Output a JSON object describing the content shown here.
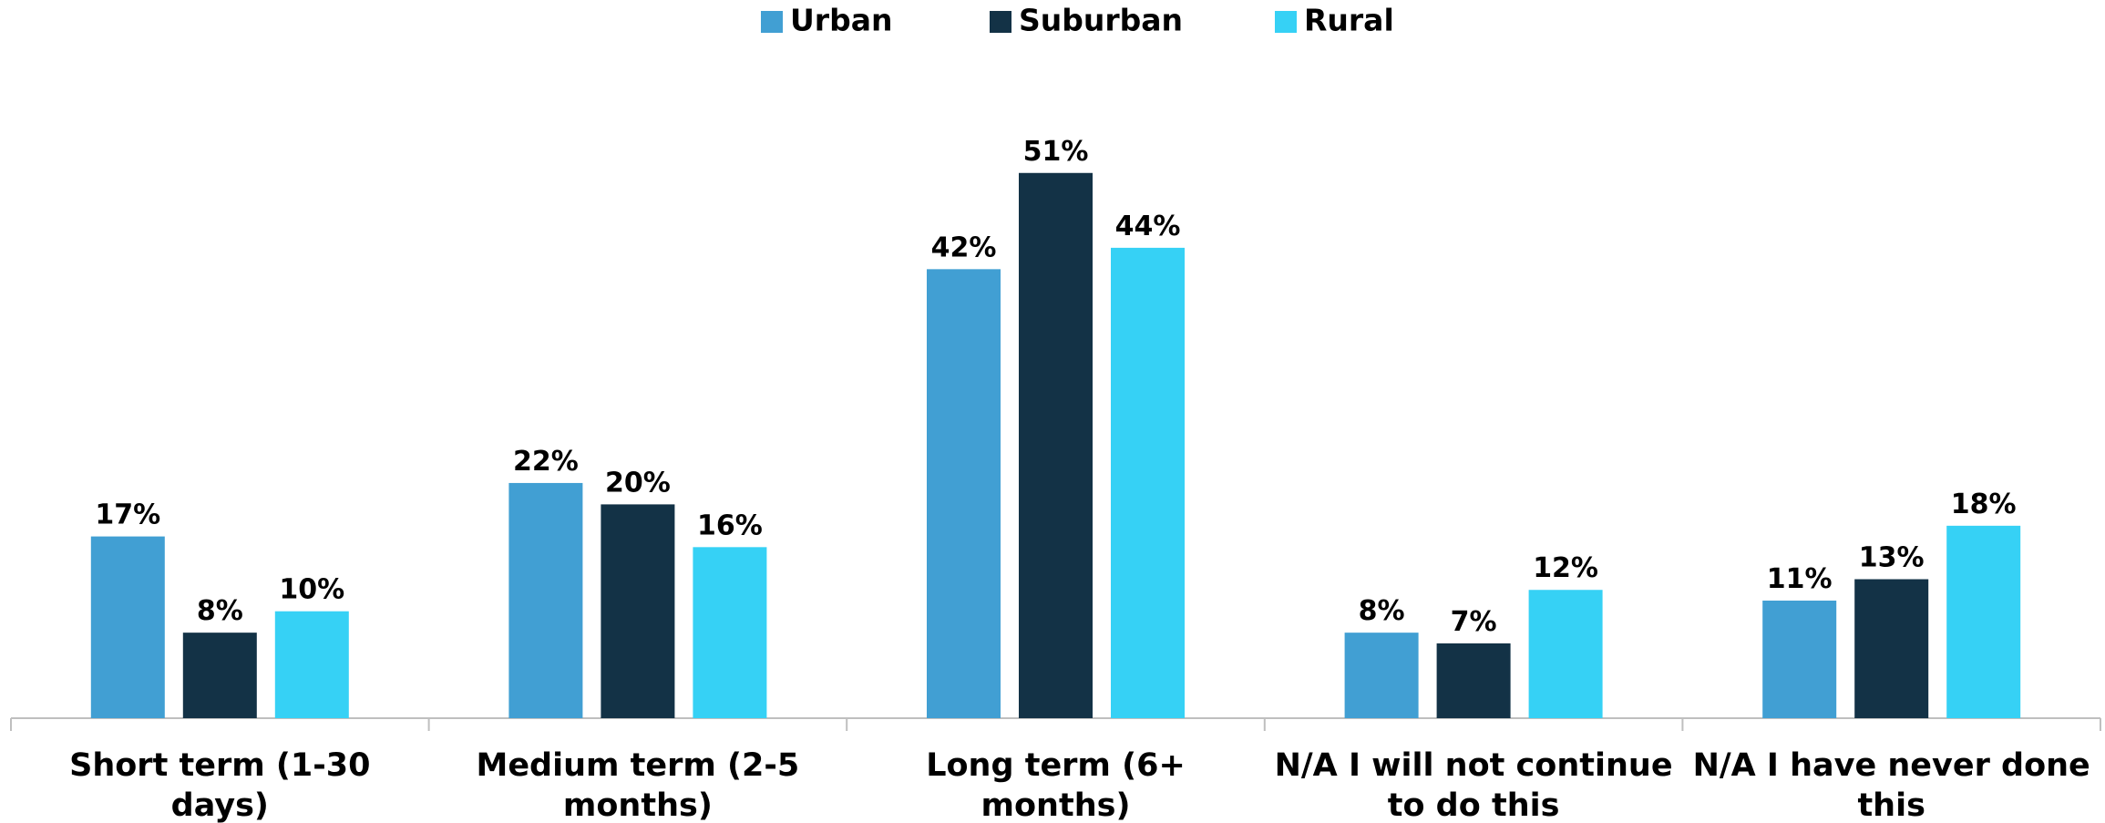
{
  "chart_data": {
    "type": "bar",
    "categories": [
      "Short term (1-30 days)",
      "Medium term (2-5 months)",
      "Long term (6+ months)",
      "N/A I will not continue to do this",
      "N/A I have never done this"
    ],
    "series": [
      {
        "name": "Urban",
        "color": "#419fd3",
        "values": [
          17,
          22,
          42,
          8,
          11
        ],
        "value_labels": [
          "17%",
          "22%",
          "42%",
          "8%",
          "11%"
        ]
      },
      {
        "name": "Suburban",
        "color": "#133246",
        "values": [
          8,
          20,
          51,
          7,
          13
        ],
        "value_labels": [
          "8%",
          "20%",
          "51%",
          "7%",
          "13%"
        ]
      },
      {
        "name": "Rural",
        "color": "#36d1f5",
        "values": [
          10,
          16,
          44,
          12,
          18
        ],
        "value_labels": [
          "10%",
          "16%",
          "44%",
          "12%",
          "18%"
        ]
      }
    ],
    "legend": "top"
  }
}
